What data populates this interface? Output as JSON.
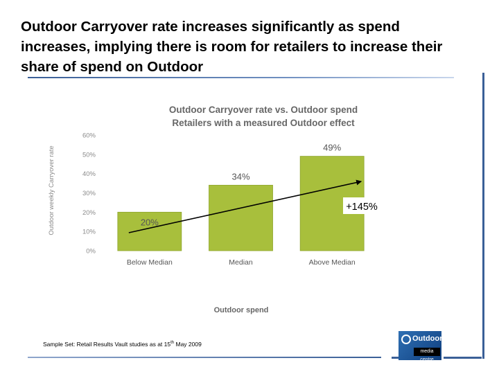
{
  "headline": "Outdoor Carryover rate increases significantly as spend increases, implying there is room for retailers to increase their share of spend on Outdoor",
  "colors": {
    "bar": "#a8bf3c",
    "bar_edge": "#8ea52c",
    "accent": "#3a5f97",
    "axis_text": "#8a8a8a",
    "title_text": "#666666"
  },
  "chart_data": {
    "type": "bar",
    "title": "Outdoor Carryover rate vs. Outdoor spend",
    "subtitle": "Retailers with a measured Outdoor effect",
    "xlabel": "Outdoor spend",
    "ylabel": "Outdoor weekly Carryover rate",
    "categories": [
      "Below Median",
      "Median",
      "Above Median"
    ],
    "values": [
      20,
      34,
      49
    ],
    "data_labels": [
      "20%",
      "34%",
      "49%"
    ],
    "ylim": [
      0,
      60
    ],
    "yticks": [
      0,
      10,
      20,
      30,
      40,
      50,
      60
    ],
    "ytick_labels": [
      "0%",
      "10%",
      "20%",
      "30%",
      "40%",
      "50%",
      "60%"
    ],
    "grid": false,
    "annotation": {
      "text": "+145%",
      "from_category": "Below Median",
      "to_category": "Above Median"
    }
  },
  "footnote": {
    "prefix": "Sample Set: Retail Results Vault studies as at 15",
    "sup": "th",
    "suffix": " May 2009"
  },
  "logo": {
    "word": "Outdoor",
    "sub": "media centre"
  }
}
